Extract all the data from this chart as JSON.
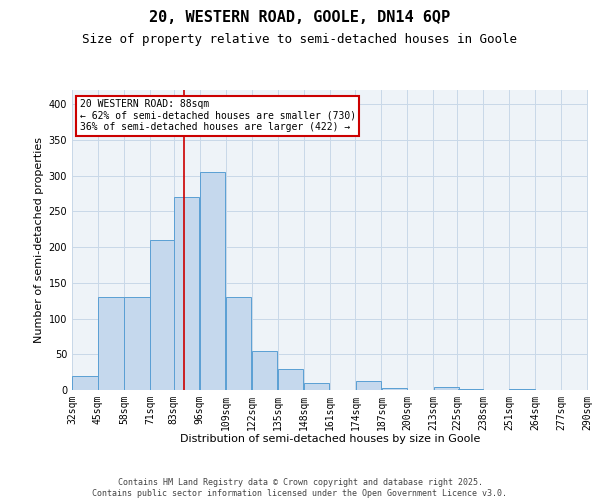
{
  "title_line1": "20, WESTERN ROAD, GOOLE, DN14 6QP",
  "title_line2": "Size of property relative to semi-detached houses in Goole",
  "xlabel": "Distribution of semi-detached houses by size in Goole",
  "ylabel": "Number of semi-detached properties",
  "bin_labels": [
    "32sqm",
    "45sqm",
    "58sqm",
    "71sqm",
    "83sqm",
    "96sqm",
    "109sqm",
    "122sqm",
    "135sqm",
    "148sqm",
    "161sqm",
    "174sqm",
    "187sqm",
    "200sqm",
    "213sqm",
    "225sqm",
    "238sqm",
    "251sqm",
    "264sqm",
    "277sqm",
    "290sqm"
  ],
  "bin_left_edges": [
    32,
    45,
    58,
    71,
    83,
    96,
    109,
    122,
    135,
    148,
    161,
    174,
    187,
    200,
    213,
    225,
    238,
    251,
    264,
    277,
    290
  ],
  "bin_width": 13,
  "bar_heights": [
    20,
    130,
    130,
    210,
    270,
    305,
    130,
    55,
    30,
    10,
    0,
    12,
    3,
    0,
    4,
    2,
    0,
    2,
    0,
    0
  ],
  "bar_color": "#c5d8ed",
  "bar_edge_color": "#5a9fd4",
  "property_size": 88,
  "red_line_color": "#cc0000",
  "annotation_text": "20 WESTERN ROAD: 88sqm\n← 62% of semi-detached houses are smaller (730)\n36% of semi-detached houses are larger (422) →",
  "annotation_box_color": "#ffffff",
  "annotation_box_edge_color": "#cc0000",
  "ylim": [
    0,
    420
  ],
  "yticks": [
    0,
    50,
    100,
    150,
    200,
    250,
    300,
    350,
    400
  ],
  "grid_color": "#c8d8e8",
  "background_color": "#eef3f8",
  "footer_text": "Contains HM Land Registry data © Crown copyright and database right 2025.\nContains public sector information licensed under the Open Government Licence v3.0.",
  "title_fontsize": 11,
  "subtitle_fontsize": 9,
  "axis_label_fontsize": 8,
  "tick_fontsize": 7,
  "annotation_fontsize": 7,
  "footer_fontsize": 6
}
